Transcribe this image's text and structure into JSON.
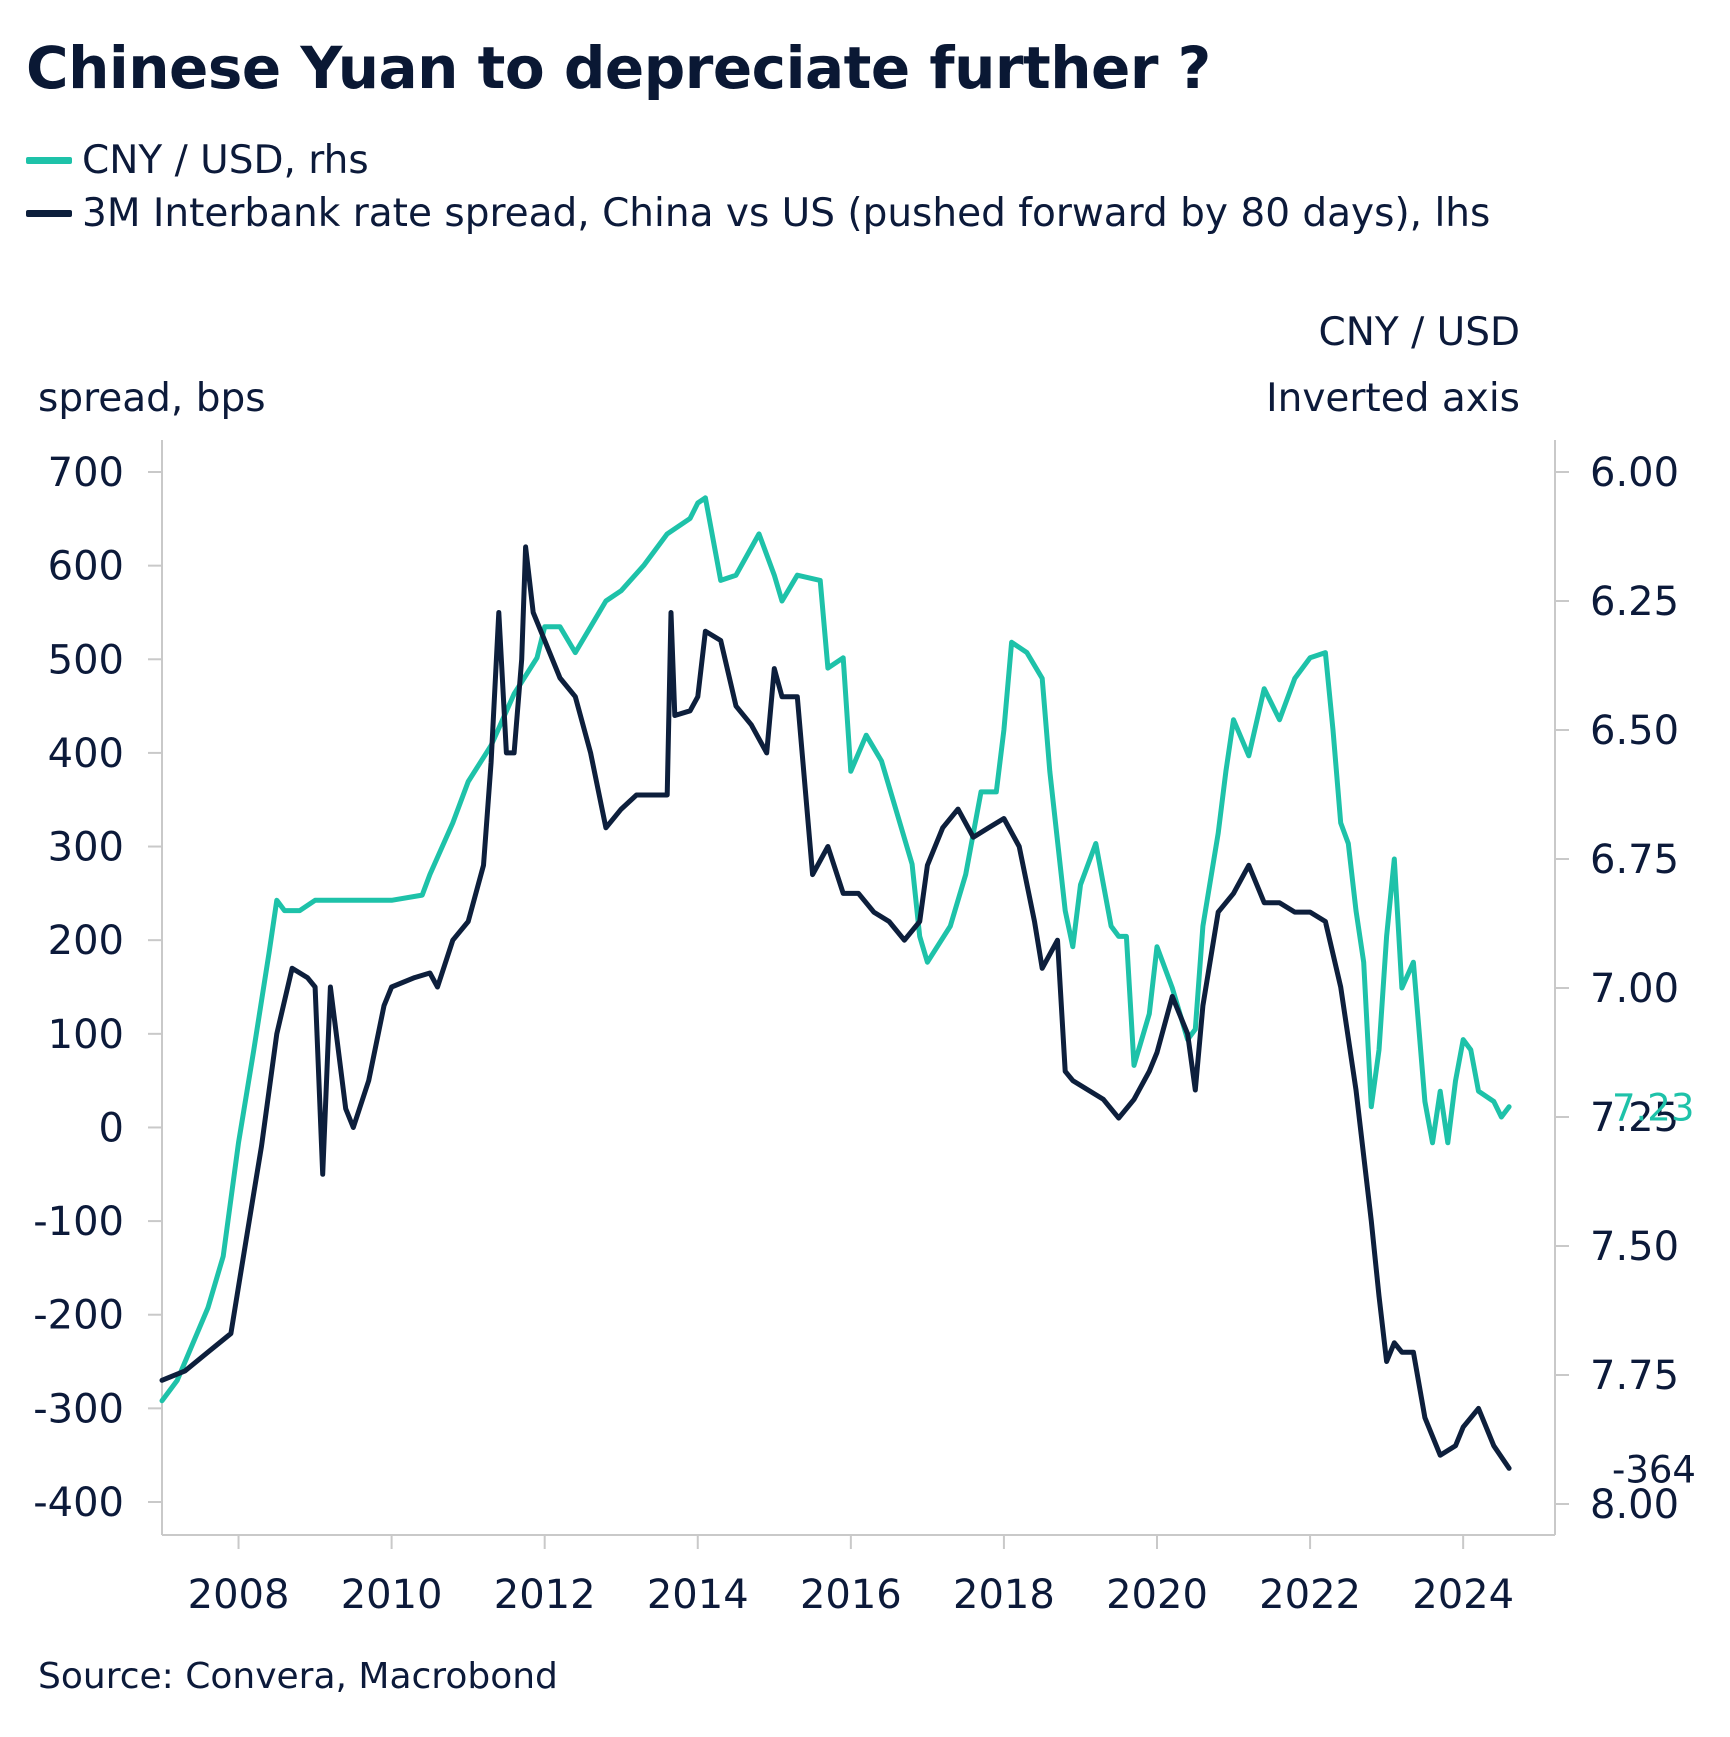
{
  "title": "Chinese Yuan to depreciate further ?",
  "legend": [
    {
      "label": "CNY / USD, rhs",
      "color": "#1ec2a9"
    },
    {
      "label": "3M Interbank rate spread, China vs US  (pushed forward by 80 days), lhs",
      "color": "#0d1f3c"
    }
  ],
  "left_axis_title": "spread, bps",
  "right_axis_title_line1": "CNY / USD",
  "right_axis_title_line2": "Inverted axis",
  "source": "Source: Convera, Macrobond",
  "last_values": {
    "cny": "7.23",
    "spread": "-364"
  },
  "chart_data": {
    "type": "line",
    "x_ticks": [
      "2008",
      "2010",
      "2012",
      "2014",
      "2016",
      "2018",
      "2020",
      "2022",
      "2024"
    ],
    "xlim": [
      2007.0,
      2025.2
    ],
    "left_axis": {
      "ticks": [
        "700",
        "600",
        "500",
        "400",
        "300",
        "200",
        "100",
        "0",
        "-100",
        "-200",
        "-300",
        "-400"
      ],
      "ylim": [
        -400,
        700
      ]
    },
    "right_axis": {
      "ticks": [
        "6.00",
        "6.25",
        "6.50",
        "6.75",
        "7.00",
        "7.25",
        "7.50",
        "7.75",
        "8.00"
      ],
      "ylim": [
        6.0,
        8.0
      ],
      "inverted": true
    },
    "series": [
      {
        "name": "CNY / USD, rhs",
        "axis": "right",
        "color": "#1ec2a9",
        "points": [
          [
            2007.0,
            7.8
          ],
          [
            2007.2,
            7.76
          ],
          [
            2007.4,
            7.69
          ],
          [
            2007.6,
            7.62
          ],
          [
            2007.8,
            7.52
          ],
          [
            2008.0,
            7.3
          ],
          [
            2008.2,
            7.12
          ],
          [
            2008.4,
            6.93
          ],
          [
            2008.5,
            6.83
          ],
          [
            2008.6,
            6.85
          ],
          [
            2008.8,
            6.85
          ],
          [
            2009.0,
            6.83
          ],
          [
            2009.5,
            6.83
          ],
          [
            2010.0,
            6.83
          ],
          [
            2010.4,
            6.82
          ],
          [
            2010.5,
            6.78
          ],
          [
            2010.8,
            6.68
          ],
          [
            2011.0,
            6.6
          ],
          [
            2011.3,
            6.53
          ],
          [
            2011.6,
            6.43
          ],
          [
            2011.9,
            6.36
          ],
          [
            2012.0,
            6.3
          ],
          [
            2012.2,
            6.3
          ],
          [
            2012.4,
            6.35
          ],
          [
            2012.6,
            6.3
          ],
          [
            2012.8,
            6.25
          ],
          [
            2013.0,
            6.23
          ],
          [
            2013.3,
            6.18
          ],
          [
            2013.6,
            6.12
          ],
          [
            2013.9,
            6.09
          ],
          [
            2014.0,
            6.06
          ],
          [
            2014.1,
            6.05
          ],
          [
            2014.3,
            6.21
          ],
          [
            2014.5,
            6.2
          ],
          [
            2014.8,
            6.12
          ],
          [
            2015.0,
            6.2
          ],
          [
            2015.1,
            6.25
          ],
          [
            2015.3,
            6.2
          ],
          [
            2015.6,
            6.21
          ],
          [
            2015.7,
            6.38
          ],
          [
            2015.9,
            6.36
          ],
          [
            2016.0,
            6.58
          ],
          [
            2016.2,
            6.51
          ],
          [
            2016.4,
            6.56
          ],
          [
            2016.6,
            6.66
          ],
          [
            2016.8,
            6.76
          ],
          [
            2016.9,
            6.9
          ],
          [
            2017.0,
            6.95
          ],
          [
            2017.3,
            6.88
          ],
          [
            2017.5,
            6.78
          ],
          [
            2017.7,
            6.62
          ],
          [
            2017.9,
            6.62
          ],
          [
            2018.0,
            6.5
          ],
          [
            2018.1,
            6.33
          ],
          [
            2018.3,
            6.35
          ],
          [
            2018.5,
            6.4
          ],
          [
            2018.6,
            6.58
          ],
          [
            2018.8,
            6.85
          ],
          [
            2018.9,
            6.92
          ],
          [
            2019.0,
            6.8
          ],
          [
            2019.2,
            6.72
          ],
          [
            2019.4,
            6.88
          ],
          [
            2019.5,
            6.9
          ],
          [
            2019.6,
            6.9
          ],
          [
            2019.7,
            7.15
          ],
          [
            2019.9,
            7.05
          ],
          [
            2020.0,
            6.92
          ],
          [
            2020.2,
            7.0
          ],
          [
            2020.4,
            7.1
          ],
          [
            2020.5,
            7.08
          ],
          [
            2020.6,
            6.88
          ],
          [
            2020.8,
            6.7
          ],
          [
            2020.9,
            6.58
          ],
          [
            2021.0,
            6.48
          ],
          [
            2021.2,
            6.55
          ],
          [
            2021.4,
            6.42
          ],
          [
            2021.6,
            6.48
          ],
          [
            2021.8,
            6.4
          ],
          [
            2022.0,
            6.36
          ],
          [
            2022.2,
            6.35
          ],
          [
            2022.3,
            6.5
          ],
          [
            2022.4,
            6.68
          ],
          [
            2022.5,
            6.72
          ],
          [
            2022.6,
            6.85
          ],
          [
            2022.7,
            6.95
          ],
          [
            2022.8,
            7.23
          ],
          [
            2022.9,
            7.12
          ],
          [
            2023.0,
            6.9
          ],
          [
            2023.1,
            6.75
          ],
          [
            2023.2,
            7.0
          ],
          [
            2023.35,
            6.95
          ],
          [
            2023.5,
            7.22
          ],
          [
            2023.6,
            7.3
          ],
          [
            2023.7,
            7.2
          ],
          [
            2023.8,
            7.3
          ],
          [
            2023.9,
            7.18
          ],
          [
            2024.0,
            7.1
          ],
          [
            2024.1,
            7.12
          ],
          [
            2024.2,
            7.2
          ],
          [
            2024.4,
            7.22
          ],
          [
            2024.5,
            7.25
          ],
          [
            2024.6,
            7.23
          ]
        ]
      },
      {
        "name": "3M Interbank rate spread, China vs US  (pushed forward by 80 days), lhs",
        "axis": "left",
        "color": "#0d1f3c",
        "points": [
          [
            2007.0,
            -270
          ],
          [
            2007.3,
            -260
          ],
          [
            2007.6,
            -240
          ],
          [
            2007.9,
            -220
          ],
          [
            2008.0,
            -170
          ],
          [
            2008.2,
            -70
          ],
          [
            2008.3,
            -20
          ],
          [
            2008.5,
            100
          ],
          [
            2008.7,
            170
          ],
          [
            2008.9,
            160
          ],
          [
            2009.0,
            150
          ],
          [
            2009.1,
            -50
          ],
          [
            2009.2,
            150
          ],
          [
            2009.4,
            20
          ],
          [
            2009.5,
            0
          ],
          [
            2009.7,
            50
          ],
          [
            2009.9,
            130
          ],
          [
            2010.0,
            150
          ],
          [
            2010.3,
            160
          ],
          [
            2010.5,
            165
          ],
          [
            2010.6,
            150
          ],
          [
            2010.8,
            200
          ],
          [
            2011.0,
            220
          ],
          [
            2011.2,
            280
          ],
          [
            2011.3,
            390
          ],
          [
            2011.4,
            550
          ],
          [
            2011.5,
            400
          ],
          [
            2011.6,
            400
          ],
          [
            2011.7,
            500
          ],
          [
            2011.75,
            620
          ],
          [
            2011.85,
            550
          ],
          [
            2012.0,
            520
          ],
          [
            2012.2,
            480
          ],
          [
            2012.4,
            460
          ],
          [
            2012.6,
            400
          ],
          [
            2012.8,
            320
          ],
          [
            2013.0,
            340
          ],
          [
            2013.2,
            355
          ],
          [
            2013.6,
            355
          ],
          [
            2013.65,
            550
          ],
          [
            2013.7,
            440
          ],
          [
            2013.9,
            445
          ],
          [
            2014.0,
            460
          ],
          [
            2014.1,
            530
          ],
          [
            2014.3,
            520
          ],
          [
            2014.5,
            450
          ],
          [
            2014.7,
            430
          ],
          [
            2014.9,
            400
          ],
          [
            2015.0,
            490
          ],
          [
            2015.1,
            460
          ],
          [
            2015.3,
            460
          ],
          [
            2015.5,
            270
          ],
          [
            2015.7,
            300
          ],
          [
            2015.9,
            250
          ],
          [
            2016.1,
            250
          ],
          [
            2016.3,
            230
          ],
          [
            2016.5,
            220
          ],
          [
            2016.7,
            200
          ],
          [
            2016.9,
            220
          ],
          [
            2017.0,
            280
          ],
          [
            2017.2,
            320
          ],
          [
            2017.4,
            340
          ],
          [
            2017.6,
            310
          ],
          [
            2017.8,
            320
          ],
          [
            2018.0,
            330
          ],
          [
            2018.2,
            300
          ],
          [
            2018.4,
            220
          ],
          [
            2018.5,
            170
          ],
          [
            2018.7,
            200
          ],
          [
            2018.8,
            60
          ],
          [
            2018.9,
            50
          ],
          [
            2019.1,
            40
          ],
          [
            2019.3,
            30
          ],
          [
            2019.5,
            10
          ],
          [
            2019.7,
            30
          ],
          [
            2019.9,
            60
          ],
          [
            2020.0,
            80
          ],
          [
            2020.2,
            140
          ],
          [
            2020.4,
            100
          ],
          [
            2020.5,
            40
          ],
          [
            2020.6,
            130
          ],
          [
            2020.8,
            230
          ],
          [
            2021.0,
            250
          ],
          [
            2021.2,
            280
          ],
          [
            2021.4,
            240
          ],
          [
            2021.6,
            240
          ],
          [
            2021.8,
            230
          ],
          [
            2022.0,
            230
          ],
          [
            2022.2,
            220
          ],
          [
            2022.4,
            150
          ],
          [
            2022.6,
            40
          ],
          [
            2022.8,
            -100
          ],
          [
            2022.9,
            -180
          ],
          [
            2023.0,
            -250
          ],
          [
            2023.1,
            -230
          ],
          [
            2023.2,
            -240
          ],
          [
            2023.35,
            -240
          ],
          [
            2023.5,
            -310
          ],
          [
            2023.7,
            -350
          ],
          [
            2023.9,
            -340
          ],
          [
            2024.0,
            -320
          ],
          [
            2024.2,
            -300
          ],
          [
            2024.4,
            -340
          ],
          [
            2024.6,
            -364
          ]
        ]
      }
    ]
  }
}
